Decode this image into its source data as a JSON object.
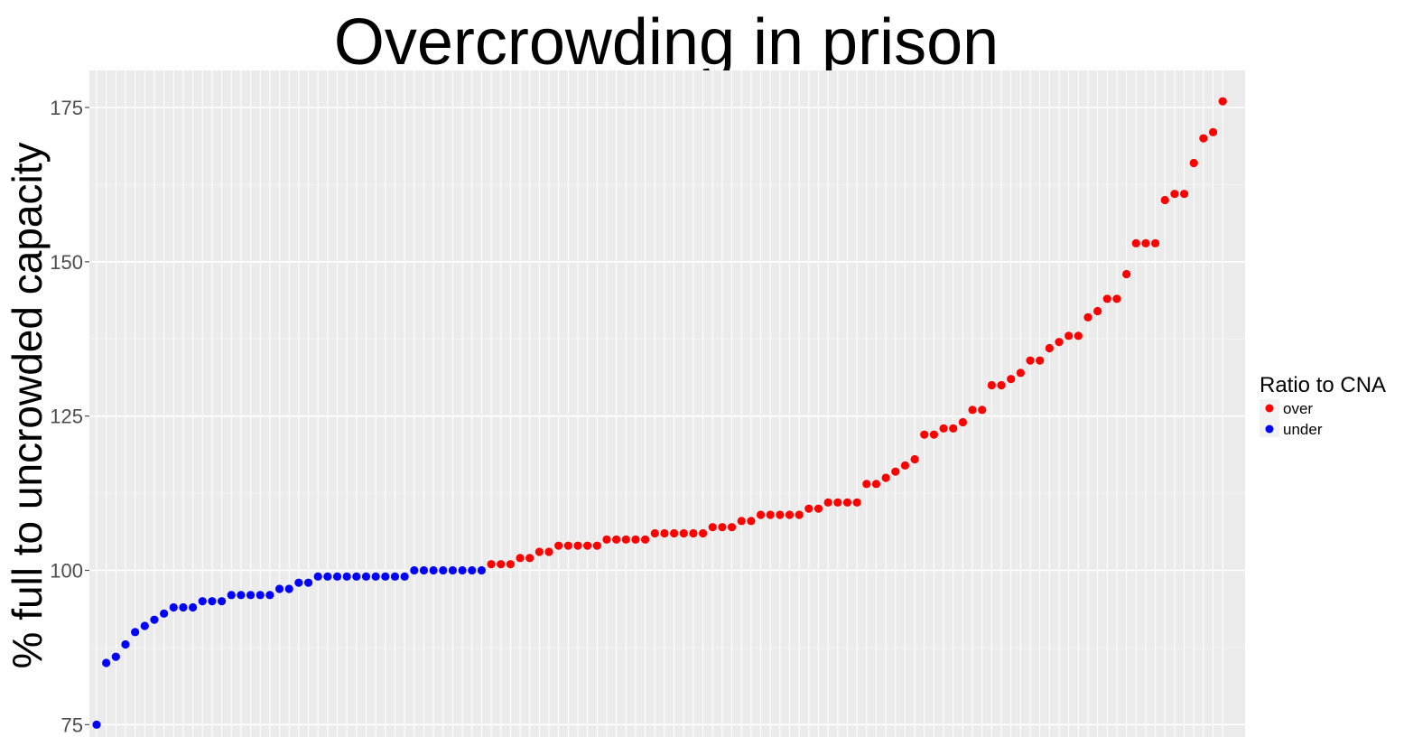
{
  "chart_data": {
    "type": "scatter",
    "title": "Overcrowding in prison",
    "xlabel": "",
    "ylabel": "% full to uncrowded capacity",
    "ylim": [
      73,
      181
    ],
    "yticks": [
      75,
      100,
      125,
      150,
      175
    ],
    "grid": true,
    "legend_position": "right",
    "legend": {
      "title": "Ratio to CNA",
      "entries": [
        {
          "label": "over",
          "color": "#ff0000"
        },
        {
          "label": "under",
          "color": "#0000ff"
        }
      ]
    },
    "series": [
      {
        "name": "under",
        "color": "#0000ff",
        "values": [
          75,
          85,
          86,
          88,
          90,
          91,
          92,
          93,
          94,
          94,
          94,
          95,
          95,
          95,
          96,
          96,
          96,
          96,
          96,
          97,
          97,
          98,
          98,
          99,
          99,
          99,
          99,
          99,
          99,
          99,
          99,
          99,
          99,
          100,
          100,
          100,
          100,
          100,
          100,
          100,
          100
        ]
      },
      {
        "name": "over",
        "color": "#ff0000",
        "values": [
          101,
          101,
          101,
          102,
          102,
          103,
          103,
          104,
          104,
          104,
          104,
          104,
          105,
          105,
          105,
          105,
          105,
          106,
          106,
          106,
          106,
          106,
          106,
          107,
          107,
          107,
          108,
          108,
          109,
          109,
          109,
          109,
          109,
          110,
          110,
          111,
          111,
          111,
          111,
          114,
          114,
          115,
          116,
          117,
          118,
          122,
          122,
          123,
          123,
          124,
          126,
          126,
          130,
          130,
          131,
          132,
          134,
          134,
          136,
          137,
          138,
          138,
          141,
          142,
          144,
          144,
          148,
          153,
          153,
          153,
          160,
          161,
          161,
          166,
          170,
          171,
          176
        ]
      }
    ]
  }
}
